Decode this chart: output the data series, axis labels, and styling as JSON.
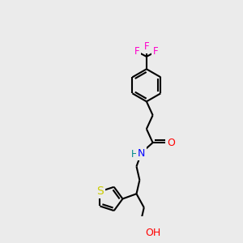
{
  "background_color": "#ebebeb",
  "bond_color": "#000000",
  "atom_colors": {
    "F": "#ff00cc",
    "O": "#ff0000",
    "N": "#0000ff",
    "S": "#cccc00",
    "H": "#008b8b"
  },
  "bond_lw": 1.5,
  "ring_r": 26,
  "th_r": 20
}
